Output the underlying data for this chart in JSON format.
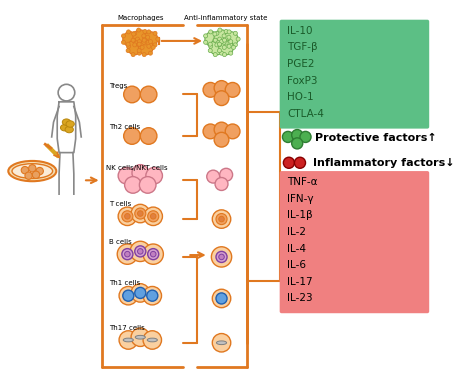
{
  "fig_width": 4.74,
  "fig_height": 3.88,
  "dpi": 100,
  "bg_color": "#ffffff",
  "orange_color": "#E07820",
  "green_box_color": "#5CBF85",
  "red_box_color": "#F08080",
  "protective_labels": [
    "IL-10",
    "TGF-β",
    "PGE2",
    "FoxP3",
    "HO-1",
    "CTLA-4"
  ],
  "inflammatory_labels": [
    "TNF-α",
    "IFN-γ",
    "IL-1β",
    "IL-2",
    "IL-4",
    "IL-6",
    "IL-17",
    "IL-23"
  ],
  "protective_text": "Protective factors↑",
  "inflammatory_text": "Inflammatory factors↓"
}
